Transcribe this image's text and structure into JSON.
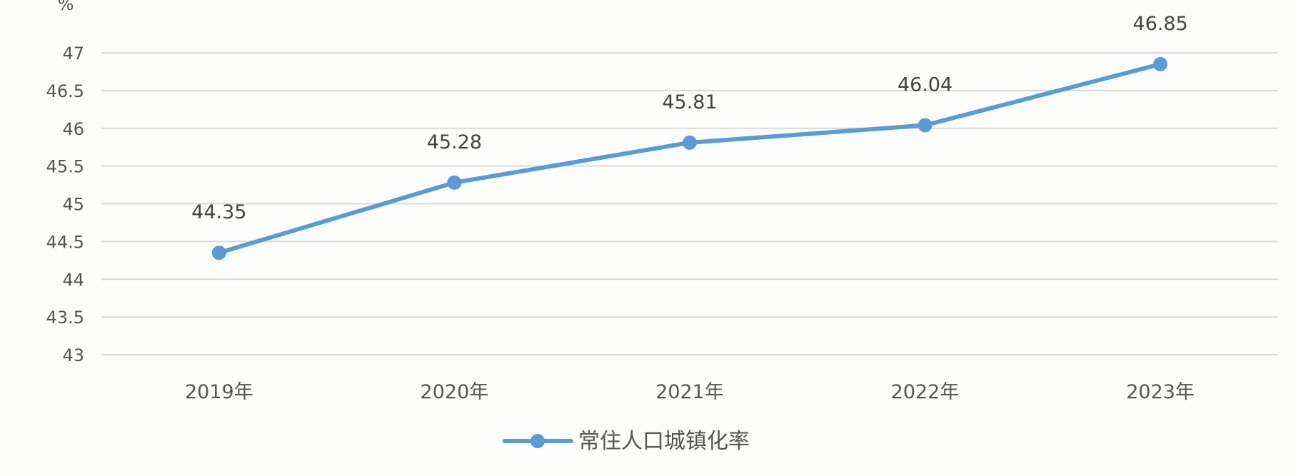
{
  "chart_data": {
    "type": "line",
    "y_unit": "%",
    "categories": [
      "2019年",
      "2020年",
      "2021年",
      "2022年",
      "2023年"
    ],
    "series": [
      {
        "name": "常住人口城镇化率",
        "values": [
          44.35,
          45.28,
          45.81,
          46.04,
          46.85
        ],
        "color": "#5b9bd5"
      }
    ],
    "data_labels": [
      "44.35",
      "45.28",
      "45.81",
      "46.04",
      "46.85"
    ],
    "ylim": [
      43,
      47
    ],
    "yticks": [
      43,
      43.5,
      44,
      44.5,
      45,
      45.5,
      46,
      46.5,
      47
    ],
    "ytick_labels": [
      "43",
      "43.5",
      "44",
      "44.5",
      "45",
      "45.5",
      "46",
      "46.5",
      "47"
    ],
    "grid": true,
    "legend_position": "bottom-center"
  }
}
